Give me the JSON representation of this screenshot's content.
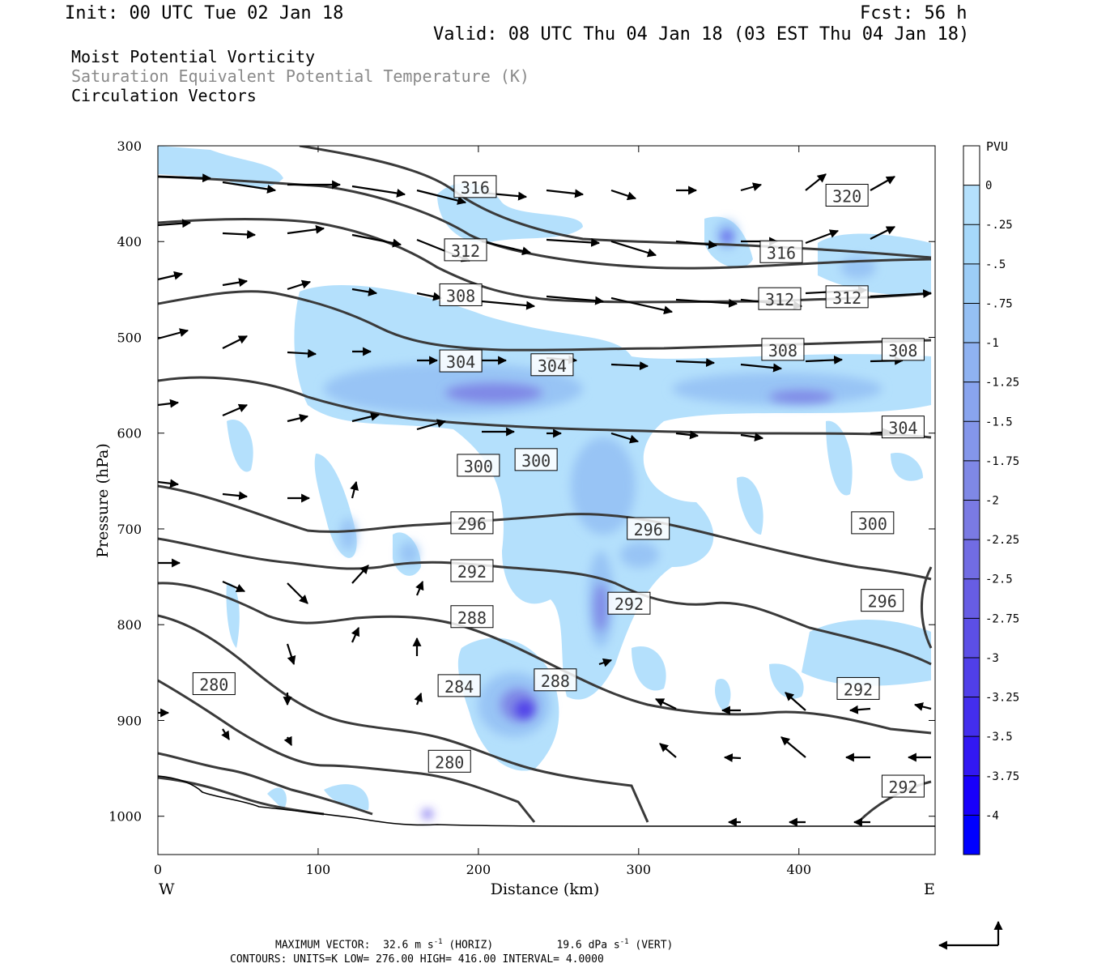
{
  "header": {
    "init": "Init: 00 UTC Tue 02 Jan 18",
    "fcst": "Fcst:   56 h",
    "valid": "Valid: 08 UTC Thu 04 Jan 18 (03 EST Thu 04 Jan 18)"
  },
  "legend_lines": [
    "Moist Potential Vorticity",
    "Saturation Equivalent Potential Temperature (K)",
    "Circulation Vectors"
  ],
  "footer": {
    "max_label": "MAXIMUM VECTOR:",
    "max_horiz": "32.6 m s",
    "horiz_tag": "(HORIZ)",
    "max_vert": "19.6 dPa s",
    "vert_tag": "(VERT)",
    "exp": "-1",
    "contours": "CONTOURS:  UNITS=K  LOW=  276.00      HIGH=  416.00      INTERVAL=    4.0000"
  },
  "colors": {
    "contour": "#3a3a3a",
    "pv_light": "#b4e0fc",
    "pv_strong": "#0000ff"
  },
  "chart_data": {
    "type": "heatmap",
    "xlabel": "Distance (km)",
    "ylabel": "Pressure (hPa)",
    "xlim": [
      0,
      485
    ],
    "ylim": [
      1040,
      300
    ],
    "x_ticks": [
      "0",
      "100",
      "200",
      "300",
      "400"
    ],
    "y_ticks": [
      "300",
      "400",
      "500",
      "600",
      "700",
      "800",
      "900",
      "1000"
    ],
    "x_end_labels": {
      "left": "W",
      "right": "E"
    },
    "colorbar": {
      "title": "PVU",
      "labels": [
        "0",
        "-.25",
        "-.5",
        "-.75",
        "-1",
        "-1.25",
        "-1.5",
        "-1.75",
        "-2",
        "-2.25",
        "-2.5",
        "-2.75",
        "-3",
        "-3.25",
        "-3.5",
        "-3.75",
        "-4"
      ],
      "colors": [
        "#ffffff",
        "#b4e0fc",
        "#a6d8fa",
        "#9ccdf7",
        "#95c0f4",
        "#8fb2f1",
        "#89a4ee",
        "#8496ea",
        "#7f88e6",
        "#7a7ae3",
        "#716ce3",
        "#675de4",
        "#5c4fe6",
        "#503fe9",
        "#432eed",
        "#3218f3",
        "#1800fb",
        "#0000ff"
      ]
    },
    "contour_labels": [
      {
        "text": "316",
        "x": 198,
        "p": 343
      },
      {
        "text": "320",
        "x": 430,
        "p": 352
      },
      {
        "text": "312",
        "x": 192,
        "p": 409
      },
      {
        "text": "316",
        "x": 389,
        "p": 411
      },
      {
        "text": "308",
        "x": 189,
        "p": 456
      },
      {
        "text": "312",
        "x": 388,
        "p": 460
      },
      {
        "text": "312",
        "x": 430,
        "p": 458
      },
      {
        "text": "304",
        "x": 189,
        "p": 525
      },
      {
        "text": "304",
        "x": 246,
        "p": 529
      },
      {
        "text": "308",
        "x": 390,
        "p": 513
      },
      {
        "text": "308",
        "x": 465,
        "p": 513
      },
      {
        "text": "304",
        "x": 465,
        "p": 594
      },
      {
        "text": "300",
        "x": 200,
        "p": 634
      },
      {
        "text": "300",
        "x": 236,
        "p": 628
      },
      {
        "text": "300",
        "x": 446,
        "p": 694
      },
      {
        "text": "296",
        "x": 196,
        "p": 694
      },
      {
        "text": "296",
        "x": 306,
        "p": 700
      },
      {
        "text": "296",
        "x": 452,
        "p": 775
      },
      {
        "text": "292",
        "x": 196,
        "p": 744
      },
      {
        "text": "292",
        "x": 294,
        "p": 778
      },
      {
        "text": "292",
        "x": 437,
        "p": 867
      },
      {
        "text": "292",
        "x": 465,
        "p": 969
      },
      {
        "text": "288",
        "x": 196,
        "p": 792
      },
      {
        "text": "288",
        "x": 248,
        "p": 858
      },
      {
        "text": "284",
        "x": 188,
        "p": 864
      },
      {
        "text": "280",
        "x": 35,
        "p": 862
      },
      {
        "text": "280",
        "x": 182,
        "p": 943
      }
    ]
  }
}
